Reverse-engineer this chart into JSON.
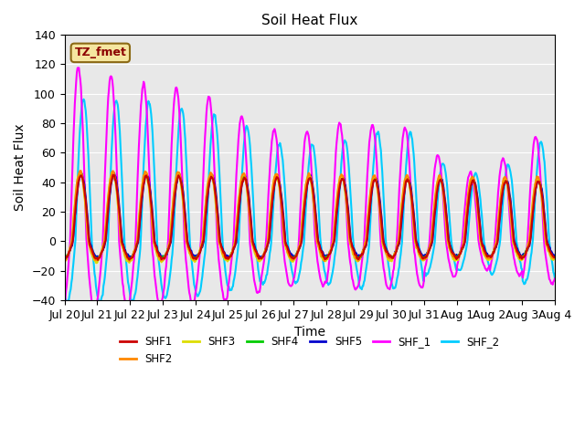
{
  "title": "Soil Heat Flux",
  "xlabel": "Time",
  "ylabel": "Soil Heat Flux",
  "ylim": [
    -40,
    140
  ],
  "yticks": [
    -40,
    -20,
    0,
    20,
    40,
    60,
    80,
    100,
    120,
    140
  ],
  "xtick_labels": [
    "Jul 20",
    "Jul 21",
    "Jul 22",
    "Jul 23",
    "Jul 24",
    "Jul 25",
    "Jul 26",
    "Jul 27",
    "Jul 28",
    "Jul 29",
    "Jul 30",
    "Jul 31",
    "Aug 1",
    "Aug 2",
    "Aug 3",
    "Aug 4"
  ],
  "annotation_text": "TZ_fmet",
  "annotation_box_color": "#f5e6a0",
  "annotation_text_color": "#8b0000",
  "background_color": "#e8e8e8",
  "series": {
    "SHF1": {
      "color": "#cc0000",
      "lw": 1.5
    },
    "SHF2": {
      "color": "#ff8800",
      "lw": 1.5
    },
    "SHF3": {
      "color": "#dddd00",
      "lw": 1.5
    },
    "SHF4": {
      "color": "#00cc00",
      "lw": 1.5
    },
    "SHF5": {
      "color": "#0000cc",
      "lw": 1.5
    },
    "SHF_1": {
      "color": "#ff00ff",
      "lw": 1.5
    },
    "SHF_2": {
      "color": "#00ccff",
      "lw": 1.5
    }
  },
  "n_days": 15,
  "pts_per_day": 48
}
